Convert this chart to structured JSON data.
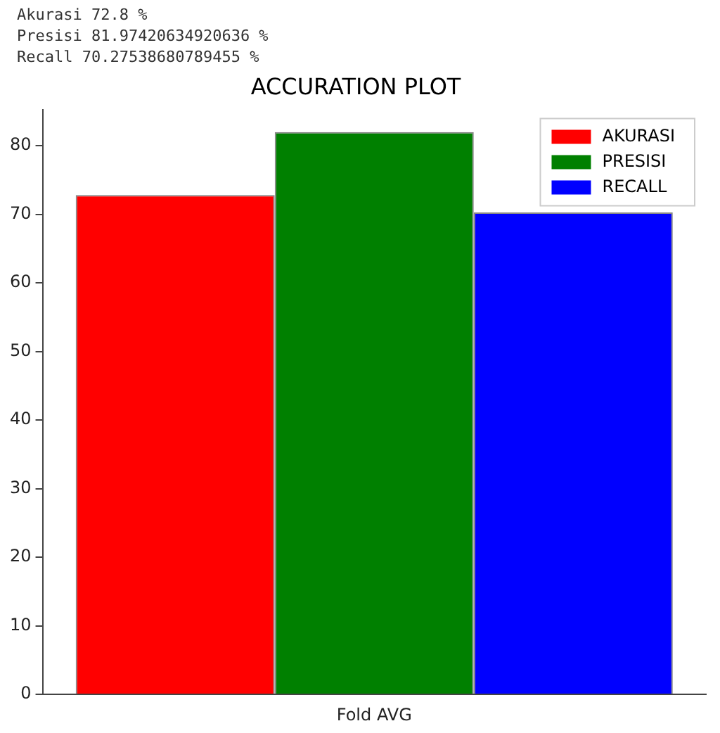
{
  "chart_data": {
    "type": "bar",
    "title": "ACCURATION PLOT",
    "annotations": [
      "Akurasi 72.8 %",
      "Presisi 81.97420634920636 %",
      "Recall 70.27538680789455 %"
    ],
    "categories": [
      "Fold AVG"
    ],
    "series": [
      {
        "name": "AKURASI",
        "color": "#ff0000",
        "values": [
          72.8
        ]
      },
      {
        "name": "PRESISI",
        "color": "#008000",
        "values": [
          81.97420634920636
        ]
      },
      {
        "name": "RECALL",
        "color": "#0000ff",
        "values": [
          70.27538680789455
        ]
      }
    ],
    "ylim": [
      0,
      85.2
    ],
    "yticks": [
      0,
      10,
      20,
      30,
      40,
      50,
      60,
      70,
      80
    ],
    "grid": false,
    "legend": "top right"
  }
}
